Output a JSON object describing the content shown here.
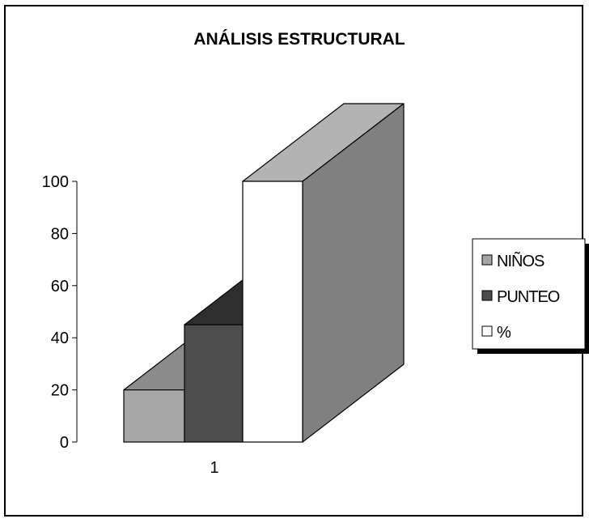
{
  "chart_data": {
    "type": "bar",
    "title": "ANÁLISIS ESTRUCTURAL",
    "categories": [
      "1"
    ],
    "series": [
      {
        "name": "NIÑOS",
        "values": [
          20
        ],
        "color": "#a6a6a6"
      },
      {
        "name": "PUNTEO",
        "values": [
          45
        ],
        "color": "#4d4d4d"
      },
      {
        "name": "%",
        "values": [
          100
        ],
        "color": "#ffffff"
      }
    ],
    "ylim": [
      0,
      100
    ],
    "yticks": [
      0,
      20,
      40,
      60,
      80,
      100
    ],
    "grid": false,
    "legend_position": "right",
    "style": "3d"
  }
}
